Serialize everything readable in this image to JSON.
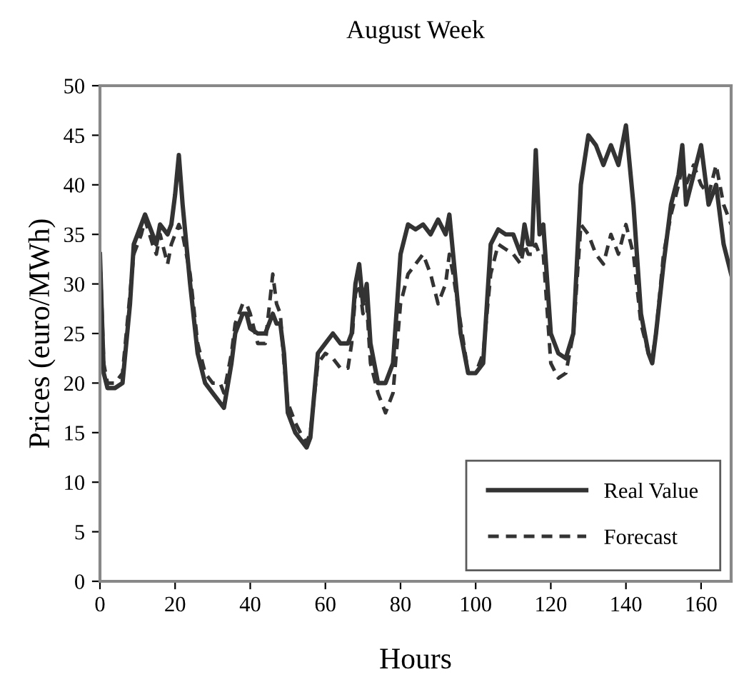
{
  "chart_data": {
    "type": "line",
    "title": "August Week",
    "xlabel": "Hours",
    "ylabel": "Prices (euro/MWh)",
    "xlim": [
      0,
      168
    ],
    "xticks": [
      0,
      20,
      40,
      60,
      80,
      100,
      120,
      140,
      160
    ],
    "ylim": [
      0,
      50
    ],
    "yticks": [
      0,
      5,
      10,
      15,
      20,
      25,
      30,
      35,
      40,
      45,
      50
    ],
    "grid": false,
    "legend": "bottom right",
    "marker": "none",
    "x": [
      0,
      1,
      2,
      4,
      6,
      8,
      9,
      11,
      12,
      14,
      15,
      16,
      18,
      19,
      20,
      21,
      22,
      24,
      26,
      28,
      30,
      32,
      33,
      35,
      36,
      38,
      39,
      40,
      42,
      44,
      46,
      47,
      48,
      49,
      50,
      52,
      54,
      55,
      56,
      58,
      60,
      62,
      64,
      66,
      67,
      68,
      69,
      70,
      71,
      72,
      74,
      76,
      78,
      80,
      82,
      84,
      86,
      88,
      90,
      92,
      93,
      94,
      96,
      98,
      100,
      102,
      104,
      106,
      108,
      110,
      112,
      113,
      114,
      115,
      116,
      117,
      118,
      120,
      122,
      124,
      126,
      128,
      130,
      132,
      134,
      136,
      138,
      140,
      142,
      144,
      146,
      147,
      148,
      150,
      152,
      154,
      155,
      156,
      158,
      160,
      162,
      164,
      166,
      168
    ],
    "series": [
      {
        "name": "Real Value",
        "color": "#333333",
        "line_style": "solid",
        "values": [
          33,
          21,
          19.5,
          19.5,
          20,
          28,
          34,
          36,
          37,
          35,
          34,
          36,
          35,
          36,
          39,
          43,
          38,
          30,
          23,
          20,
          19,
          18,
          17.5,
          22,
          25,
          27,
          27,
          25.5,
          25,
          25,
          27,
          26,
          26,
          23,
          17,
          15,
          14,
          13.5,
          14.5,
          23,
          24,
          25,
          24,
          24,
          25,
          30,
          32,
          28,
          30,
          24,
          20,
          20,
          22,
          33,
          36,
          35.5,
          36,
          35,
          36.5,
          35,
          37,
          33,
          25,
          21,
          21,
          22,
          34,
          35.5,
          35,
          35,
          33,
          36,
          34,
          34,
          43.5,
          35,
          36,
          25,
          23,
          22.5,
          25,
          40,
          45,
          44,
          42,
          44,
          42,
          46,
          38,
          27,
          23,
          22,
          25,
          32,
          38,
          41,
          44,
          38,
          41,
          44,
          38,
          40,
          34,
          31
        ]
      },
      {
        "name": "Forecast",
        "color": "#333333",
        "line_style": "dashed",
        "values": [
          33,
          22,
          20,
          20,
          21,
          29,
          33,
          35,
          36.5,
          34,
          33,
          35,
          32,
          34,
          35,
          36,
          35,
          31,
          24,
          21,
          20,
          20,
          19,
          23,
          26,
          28,
          28,
          27,
          24,
          24,
          31,
          28,
          27,
          22,
          18,
          16,
          14.5,
          14,
          15,
          22,
          23,
          22.5,
          21.5,
          21.5,
          24,
          29,
          30,
          27,
          28,
          22,
          19,
          17,
          19,
          28,
          31,
          32,
          33,
          31,
          28,
          30,
          33,
          31,
          26,
          21,
          21,
          23,
          31,
          34,
          33.5,
          33,
          32,
          34,
          33,
          33,
          34,
          33,
          33,
          22,
          20.5,
          21,
          25,
          36,
          35,
          33,
          32,
          35,
          33,
          36,
          33,
          26,
          23,
          22.5,
          25,
          33,
          37,
          40,
          42,
          40,
          42,
          40,
          39,
          42,
          38,
          36
        ]
      }
    ]
  }
}
